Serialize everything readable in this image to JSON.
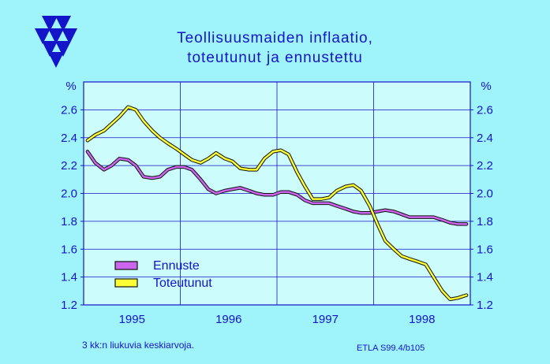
{
  "title_line1": "Teollisuusmaiden  inflaatio,",
  "title_line2": "toteutunut  ja  ennustettu",
  "footnote_left": "3 kk:n liukuvia keskiarvoja.",
  "footnote_right": "ETLA S99.4/b105",
  "colors": {
    "background": "#9ff3fb",
    "plot_background": "#ccfcfc",
    "axis_text": "#1414c8",
    "grid": "#1414c8",
    "ennuste": "#cc66ee",
    "toteutunut": "#ffff33",
    "outline": "#111111"
  },
  "chart_data": {
    "type": "line",
    "title": "Teollisuusmaiden inflaatio, toteutunut ja ennustettu",
    "ylabel_left": "%",
    "ylabel_right": "%",
    "ylim": [
      1.2,
      2.8
    ],
    "yticks": [
      1.2,
      1.4,
      1.6,
      1.8,
      2.0,
      2.2,
      2.4,
      2.6
    ],
    "ytick_labels": [
      "1.2",
      "1.4",
      "1.6",
      "1.8",
      "2.0",
      "2.2",
      "2.4",
      "2.6"
    ],
    "xlim": [
      1994.5,
      1998.5
    ],
    "xticks": [
      1995,
      1996,
      1997,
      1998
    ],
    "xtick_labels": [
      "1995",
      "1996",
      "1997",
      "1998"
    ],
    "grid": true,
    "legend_position": "bottom-left",
    "series": [
      {
        "name": "Ennuste",
        "x": [
          1994.54,
          1994.62,
          1994.71,
          1994.79,
          1994.87,
          1994.96,
          1995.04,
          1995.12,
          1995.21,
          1995.29,
          1995.37,
          1995.46,
          1995.54,
          1995.62,
          1995.71,
          1995.79,
          1995.87,
          1995.96,
          1996.04,
          1996.12,
          1996.21,
          1996.29,
          1996.37,
          1996.46,
          1996.54,
          1996.62,
          1996.71,
          1996.79,
          1996.87,
          1996.96,
          1997.04,
          1997.12,
          1997.21,
          1997.29,
          1997.37,
          1997.46,
          1997.54,
          1997.62,
          1997.71,
          1997.79,
          1997.87,
          1997.96,
          1998.04,
          1998.12,
          1998.21,
          1998.29,
          1998.37,
          1998.46
        ],
        "values": [
          2.3,
          2.22,
          2.17,
          2.2,
          2.25,
          2.24,
          2.2,
          2.12,
          2.11,
          2.12,
          2.17,
          2.19,
          2.19,
          2.17,
          2.1,
          2.03,
          2.0,
          2.02,
          2.03,
          2.04,
          2.02,
          2.0,
          1.99,
          1.99,
          2.01,
          2.01,
          1.99,
          1.95,
          1.93,
          1.93,
          1.93,
          1.91,
          1.89,
          1.87,
          1.86,
          1.86,
          1.87,
          1.88,
          1.87,
          1.85,
          1.83,
          1.83,
          1.83,
          1.83,
          1.81,
          1.79,
          1.78,
          1.78
        ]
      },
      {
        "name": "Toteutunut",
        "x": [
          1994.54,
          1994.62,
          1994.71,
          1994.79,
          1994.87,
          1994.96,
          1995.04,
          1995.12,
          1995.21,
          1995.29,
          1995.37,
          1995.46,
          1995.54,
          1995.62,
          1995.71,
          1995.79,
          1995.87,
          1995.96,
          1996.04,
          1996.12,
          1996.21,
          1996.29,
          1996.37,
          1996.46,
          1996.54,
          1996.62,
          1996.71,
          1996.79,
          1996.87,
          1996.96,
          1997.04,
          1997.12,
          1997.21,
          1997.29,
          1997.37,
          1997.46,
          1997.54,
          1997.62,
          1997.71,
          1997.79,
          1997.87,
          1997.96,
          1998.04,
          1998.12,
          1998.21,
          1998.29,
          1998.37,
          1998.46
        ],
        "values": [
          2.38,
          2.42,
          2.45,
          2.5,
          2.55,
          2.62,
          2.6,
          2.52,
          2.45,
          2.4,
          2.36,
          2.32,
          2.28,
          2.24,
          2.22,
          2.25,
          2.29,
          2.25,
          2.23,
          2.18,
          2.17,
          2.17,
          2.25,
          2.3,
          2.31,
          2.28,
          2.15,
          2.05,
          1.96,
          1.96,
          1.97,
          2.02,
          2.05,
          2.06,
          2.02,
          1.91,
          1.78,
          1.66,
          1.6,
          1.55,
          1.53,
          1.51,
          1.49,
          1.4,
          1.3,
          1.24,
          1.25,
          1.27
        ]
      }
    ]
  }
}
